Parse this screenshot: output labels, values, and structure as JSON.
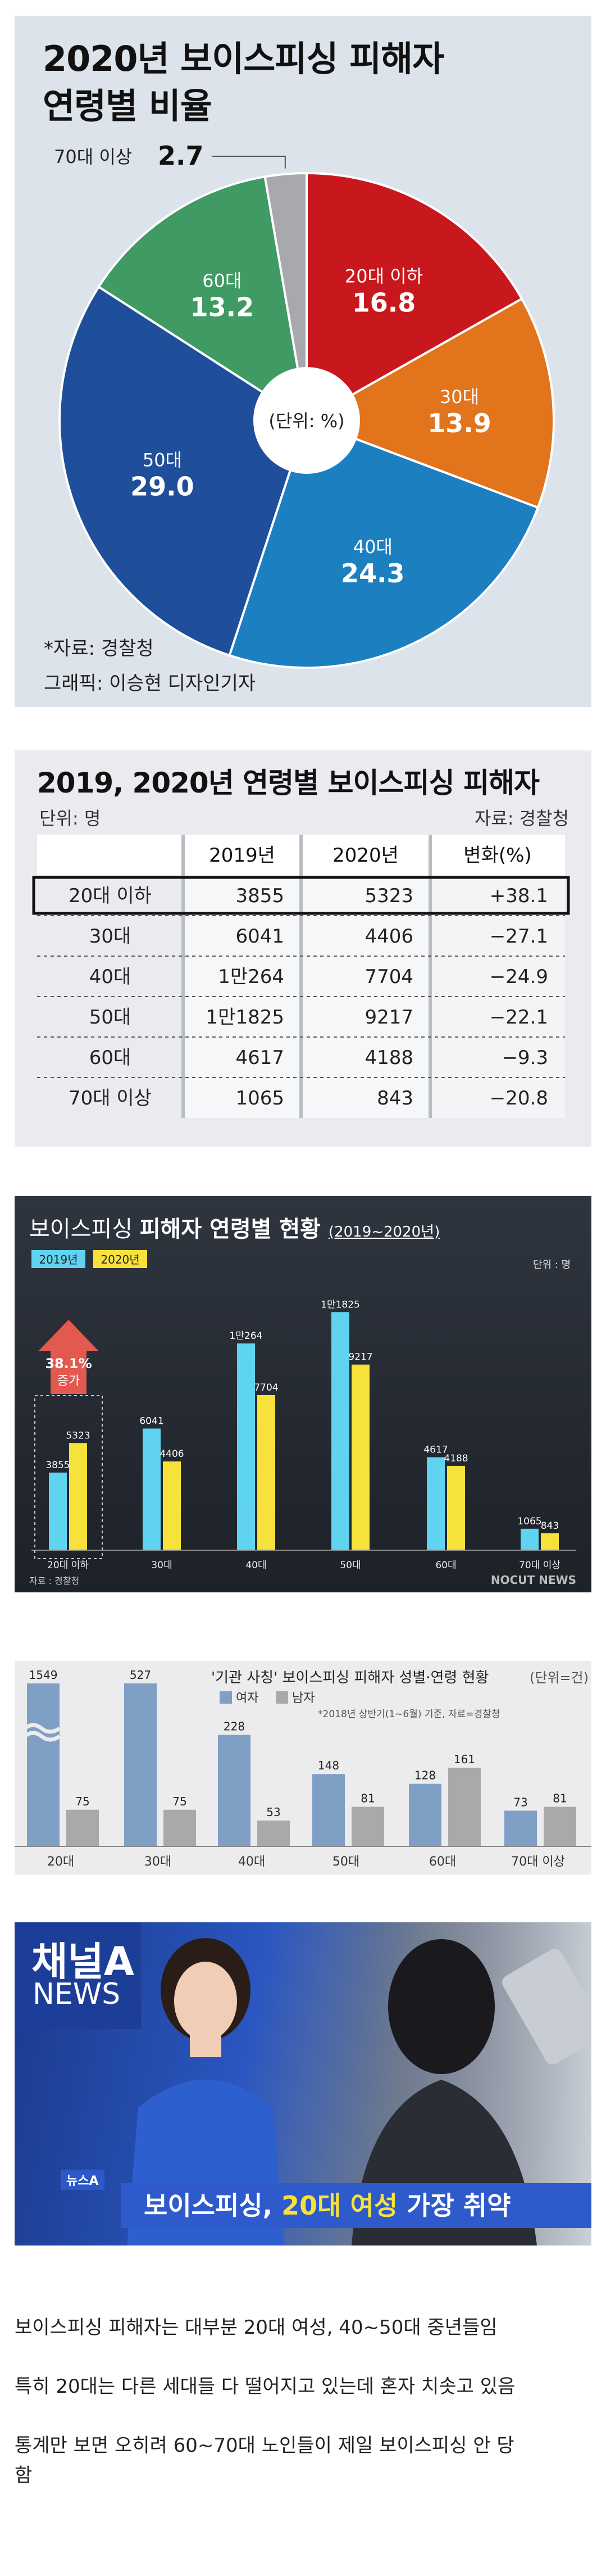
{
  "pie": {
    "title_line1": "2020년 보이스피싱 피해자",
    "title_line2": "연령별 비율",
    "center_label": "(단위: %)",
    "source": "*자료: 경찰청",
    "graphic_credit": "그래픽: 이승현 디자인기자",
    "colors": {
      "20s": "#c8181e",
      "30s": "#e2741c",
      "40s": "#1c7fc0",
      "50s": "#1f4f9a",
      "60s": "#3f9a63",
      "70s": "#a7a9ac"
    }
  },
  "table": {
    "title": "2019, 2020년 연령별 보이스피싱 피해자",
    "unit": "단위: 명",
    "source": "자료: 경찰청",
    "headers": [
      "",
      "2019년",
      "2020년",
      "변화(%)"
    ],
    "rows": [
      [
        "20대 이하",
        "3855",
        "5323",
        "+38.1"
      ],
      [
        "30대",
        "6041",
        "4406",
        "-27.1"
      ],
      [
        "40대",
        "1만264",
        "7704",
        "-24.9"
      ],
      [
        "50대",
        "1만1825",
        "9217",
        "-22.1"
      ],
      [
        "60대",
        "4617",
        "4188",
        "-9.3"
      ],
      [
        "70대 이상",
        "1065",
        "843",
        "-20.8"
      ]
    ]
  },
  "bars2": {
    "title_a": "보이스피싱 ",
    "title_b": "피해자 연령별 현황",
    "title_c": "(2019~2020년)",
    "legend": [
      "2019년",
      "2020년"
    ],
    "unit": "단위 : 명",
    "arrow_label_1": "38.1%",
    "arrow_label_2": "증가",
    "source": "자료 : 경찰청",
    "logo": "NOCUT NEWS"
  },
  "bars4": {
    "title": "'기관 사칭' 보이스피싱 피해자 성별·연령 현황",
    "unit": "(단위=건)",
    "legend": [
      "여자",
      "남자"
    ],
    "note": "*2018년 상반기(1~6월) 기준, 자료=경찰청"
  },
  "news": {
    "logo_line1": "채널A",
    "logo_line2": "NEWS",
    "tag": "뉴스A",
    "headline_a": "보이스피싱, ",
    "headline_b": "20대 여성",
    "headline_c": " 가장 취약"
  },
  "body": {
    "line1": "보이스피싱 피해자는 대부분 20대 여성, 40~50대 중년들임",
    "line2": "특히 20대는 다른 세대들 다 떨어지고 있는데 혼자 치솟고 있음",
    "line3": "통계만 보면 오히려 60~70대 노인들이 제일 보이스피싱 안 당",
    "line4": "함"
  },
  "chart_data": [
    {
      "type": "pie",
      "title": "2020년 보이스피싱 피해자 연령별 비율",
      "unit": "%",
      "categories": [
        "20대 이하",
        "30대",
        "40대",
        "50대",
        "60대",
        "70대 이상"
      ],
      "values": [
        16.8,
        13.9,
        24.3,
        29.0,
        13.2,
        2.7
      ]
    },
    {
      "type": "bar",
      "title": "보이스피싱 피해자 연령별 현황 (2019~2020년)",
      "unit": "명",
      "categories": [
        "20대 이하",
        "30대",
        "40대",
        "50대",
        "60대",
        "70대 이상"
      ],
      "series": [
        {
          "name": "2019년",
          "values": [
            3855,
            6041,
            10264,
            11825,
            4617,
            1065
          ],
          "labels": [
            "3855",
            "6041",
            "1만264",
            "1만1825",
            "4617",
            "1065"
          ],
          "color": "#5fd3f0"
        },
        {
          "name": "2020년",
          "values": [
            5323,
            4406,
            7704,
            9217,
            4188,
            843
          ],
          "labels": [
            "5323",
            "4406",
            "7704",
            "9217",
            "4188",
            "843"
          ],
          "color": "#f7e23c"
        }
      ]
    },
    {
      "type": "bar",
      "title": "'기관 사칭' 보이스피싱 피해자 성별·연령 현황",
      "unit": "건",
      "categories": [
        "20대",
        "30대",
        "40대",
        "50대",
        "60대",
        "70대 이상"
      ],
      "series": [
        {
          "name": "여자",
          "values": [
            1549,
            527,
            228,
            148,
            128,
            73
          ],
          "color": "#7f9fc4"
        },
        {
          "name": "남자",
          "values": [
            75,
            75,
            53,
            81,
            161,
            81
          ],
          "color": "#a9a9a9"
        }
      ]
    }
  ]
}
